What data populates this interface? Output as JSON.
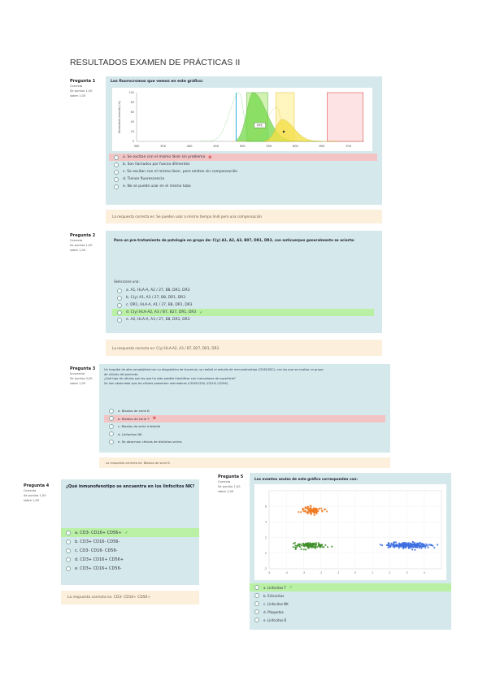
{
  "title": "RESULTADOS EXAMEN DE PRÁCTICAS II",
  "q1": {
    "info": [
      "Pregunta 1",
      "Correcta",
      "Se puntúa 1,00",
      "sobre 1,00"
    ],
    "text": "Los fluorocromos que vemos en este gráfico:",
    "options": [
      {
        "label": "a.",
        "text": "Se excitan con el mismo láser sin problema",
        "state": "red"
      },
      {
        "label": "b.",
        "text": "Son llamados por fuerza diferentes",
        "state": ""
      },
      {
        "label": "c.",
        "text": "Se excitan con el mismo láser, pero emiten sin compensación",
        "state": ""
      },
      {
        "label": "d.",
        "text": "Tienen fluorescencia",
        "state": ""
      },
      {
        "label": "e.",
        "text": "No se puede usar en el mismo tubo",
        "state": ""
      }
    ],
    "feedback": "La respuesta correcta es: Se pueden usar a mismo tiempo lindi pero una compensación"
  },
  "q1_chart": {
    "chart_data": {
      "type": "area",
      "x_ticks": [
        "300",
        "350",
        "400",
        "450",
        "500",
        "550",
        "600",
        "650",
        "700"
      ],
      "xlim": [
        300,
        730
      ],
      "y_ticks": [
        "0",
        "20",
        "40",
        "60",
        "80",
        "100"
      ],
      "ylim": [
        0,
        100
      ],
      "ylabel": "Normalized Intensity (%)",
      "annotations": [
        "FITC"
      ]
    }
  },
  "q2": {
    "info": [
      "Pregunta 2",
      "Correcta",
      "Se puntúa 1,00",
      "sobre 1,00"
    ],
    "text": "Para un pre-tratamiento de patología en grupo de: C(y) A1, A2, A3, B07, DR1, DR3, con anticuerpos generalmente se acierta:",
    "select_label": "Seleccione una:",
    "options": [
      {
        "label": "a.",
        "text": "A1, HLA-A, A2 / 27, B8, DR1, DR3",
        "state": ""
      },
      {
        "label": "b.",
        "text": "C(y) A1, A3 / 27, B8, DR1, DR3",
        "state": ""
      },
      {
        "label": "c.",
        "text": "DR1, HLA-A, A1 / 27, B8, DR1, DR3",
        "state": ""
      },
      {
        "label": "d.",
        "text": "C(y) HLA-A2, A3 / B7, B27, DR1, DR3",
        "state": "green"
      },
      {
        "label": "e.",
        "text": "A2, HLA-A, A3 / 27, B8, DR1, DR3",
        "state": ""
      }
    ],
    "feedback": "La respuesta correcta es: C(y) HLA-A2, A3 / B7, B27, DR1, DR3"
  },
  "q3": {
    "info": [
      "Pregunta 3",
      "Incorrecta",
      "Se puntúa 0,00",
      "sobre 1,00"
    ],
    "text_lines": [
      "Un hospital de alta complejidad con su diagnóstico de leucemia, se realizó el estudio de inmunofenotipo (CD45/SSC), con los que se analiza un grupo",
      "de células del paciente.",
      "¿Qué tipo de células son las que ha sido posible identificar con marcadores de superficie?",
      "Se han observado que las células presentan marcadores (CD45/CD3) (CD19) (CD56)."
    ],
    "options": [
      {
        "label": "a.",
        "text": "Blastos de serie B",
        "state": ""
      },
      {
        "label": "b.",
        "text": "Blastos de serie T",
        "state": "red"
      },
      {
        "label": "c.",
        "text": "Blastos de serie mieloide",
        "state": ""
      },
      {
        "label": "d.",
        "text": "Linfocitos NK",
        "state": ""
      },
      {
        "label": "e.",
        "text": "Se observan células de distintas series",
        "state": ""
      }
    ],
    "feedback": "La respuesta correcta es: Blastos de serie B"
  },
  "q4": {
    "info": [
      "Pregunta 4",
      "Correcta",
      "Se puntúa 1,00",
      "sobre 1,00"
    ],
    "text": "¿Qué inmunofenotipo se encuentra en los linfocitos NK?",
    "options": [
      {
        "label": "a.",
        "text": "CD3- CD16+ CD56+",
        "state": "green"
      },
      {
        "label": "b.",
        "text": "CD3+ CD16- CD56-",
        "state": ""
      },
      {
        "label": "c.",
        "text": "CD3- CD16- CD56-",
        "state": ""
      },
      {
        "label": "d.",
        "text": "CD3+ CD16+ CD56+",
        "state": ""
      },
      {
        "label": "e.",
        "text": "CD3+ CD16+ CD56-",
        "state": ""
      }
    ],
    "feedback": "La respuesta correcta es: CD3- CD16+ CD56+"
  },
  "q5": {
    "info": [
      "Pregunta 5",
      "Correcta",
      "Se puntúa 1,00",
      "sobre 1,00"
    ],
    "text": "Los eventos azules de este gráfico corresponden con:",
    "options": [
      {
        "label": "a.",
        "text": "Linfocitos T",
        "state": "green"
      },
      {
        "label": "b.",
        "text": "Eritrocitos",
        "state": ""
      },
      {
        "label": "c.",
        "text": "Linfocitos NK",
        "state": ""
      },
      {
        "label": "d.",
        "text": "Plaquetas",
        "state": ""
      },
      {
        "label": "e.",
        "text": "Linfocitos B",
        "state": ""
      }
    ]
  },
  "q5_chart": {
    "chart_data": {
      "type": "scatter",
      "xlim": [
        -5,
        5
      ],
      "ylim": [
        -2,
        8
      ],
      "x_ticks": [
        "-5",
        "-4",
        "-3",
        "-2",
        "-1",
        "0",
        "1",
        "2",
        "3",
        "4"
      ],
      "y_ticks": [
        "-2",
        "0",
        "2",
        "4",
        "6"
      ],
      "xlabel": "",
      "ylabel": "",
      "series": [
        {
          "color": "#f07a22",
          "center": [
            -2.5,
            5.5
          ],
          "spread": [
            0.6,
            0.5
          ],
          "n": 90
        },
        {
          "color": "#3f8f2a",
          "center": [
            -2.6,
            1.0
          ],
          "spread": [
            0.9,
            0.35
          ],
          "n": 120
        },
        {
          "color": "#3d6fe0",
          "center": [
            3.0,
            1.0
          ],
          "spread": [
            1.3,
            0.35
          ],
          "n": 220
        }
      ]
    }
  }
}
